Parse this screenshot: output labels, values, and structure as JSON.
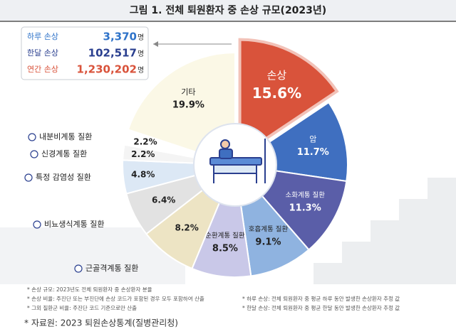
{
  "chart_data": {
    "type": "pie",
    "title": "그림 1. 전체 퇴원환자 중 손상 규모(2023년)",
    "categories": [
      "손상",
      "암",
      "소화계통 질환",
      "호흡계통 질환",
      "순환계통 질환",
      "근골격계통 질환",
      "비뇨생식계통 질환",
      "특정 감염성 질환",
      "신경계통 질환",
      "내분비계통 질환",
      "기타"
    ],
    "values": [
      15.6,
      11.7,
      11.3,
      9.1,
      8.5,
      8.2,
      6.4,
      4.8,
      2.2,
      2.2,
      19.9
    ],
    "value_labels": [
      "15.6%",
      "11.7%",
      "11.3%",
      "9.1%",
      "8.5%",
      "8.2%",
      "6.4%",
      "4.8%",
      "2.2%",
      "2.2%",
      "19.9%"
    ],
    "colors": [
      "#d9533b",
      "#3f6fc0",
      "#5a5ea8",
      "#8fb3e0",
      "#c9c8e8",
      "#ede4c4",
      "#e2e2e2",
      "#dce8f5",
      "#f4f4f4",
      "#ffffff",
      "#fbf8e6"
    ],
    "stats": [
      {
        "label": "하루 손상",
        "value": "3,370",
        "unit": "명",
        "color": "#2f73c9"
      },
      {
        "label": "한달 손상",
        "value": "102,517",
        "unit": "명",
        "color": "#2a3f8f"
      },
      {
        "label": "연간 손상",
        "value": "1,230,202",
        "unit": "명",
        "color": "#d9533b"
      }
    ],
    "notes": [
      "* 손상 규모: 2023년도 전체 퇴원환자 중 손상환자 분율",
      "* 손상 비율: 주진단 또는 부진단에 손상 코드가 포함된 경우 모두 포함하여 산출",
      "* 그외 질환군 비율: 주진단 코드 기준으로만 산출",
      "* 하루 손상: 전체 퇴원환자 중 평균 하루 동안 발생한 손상환자 추정 값",
      "* 한달 손상: 전체 퇴원환자 중 평균 한달 동안 발생한 손상환자 추정 값"
    ],
    "source": "* 자료원: 2023 퇴원손상통계(질병관리청)"
  }
}
